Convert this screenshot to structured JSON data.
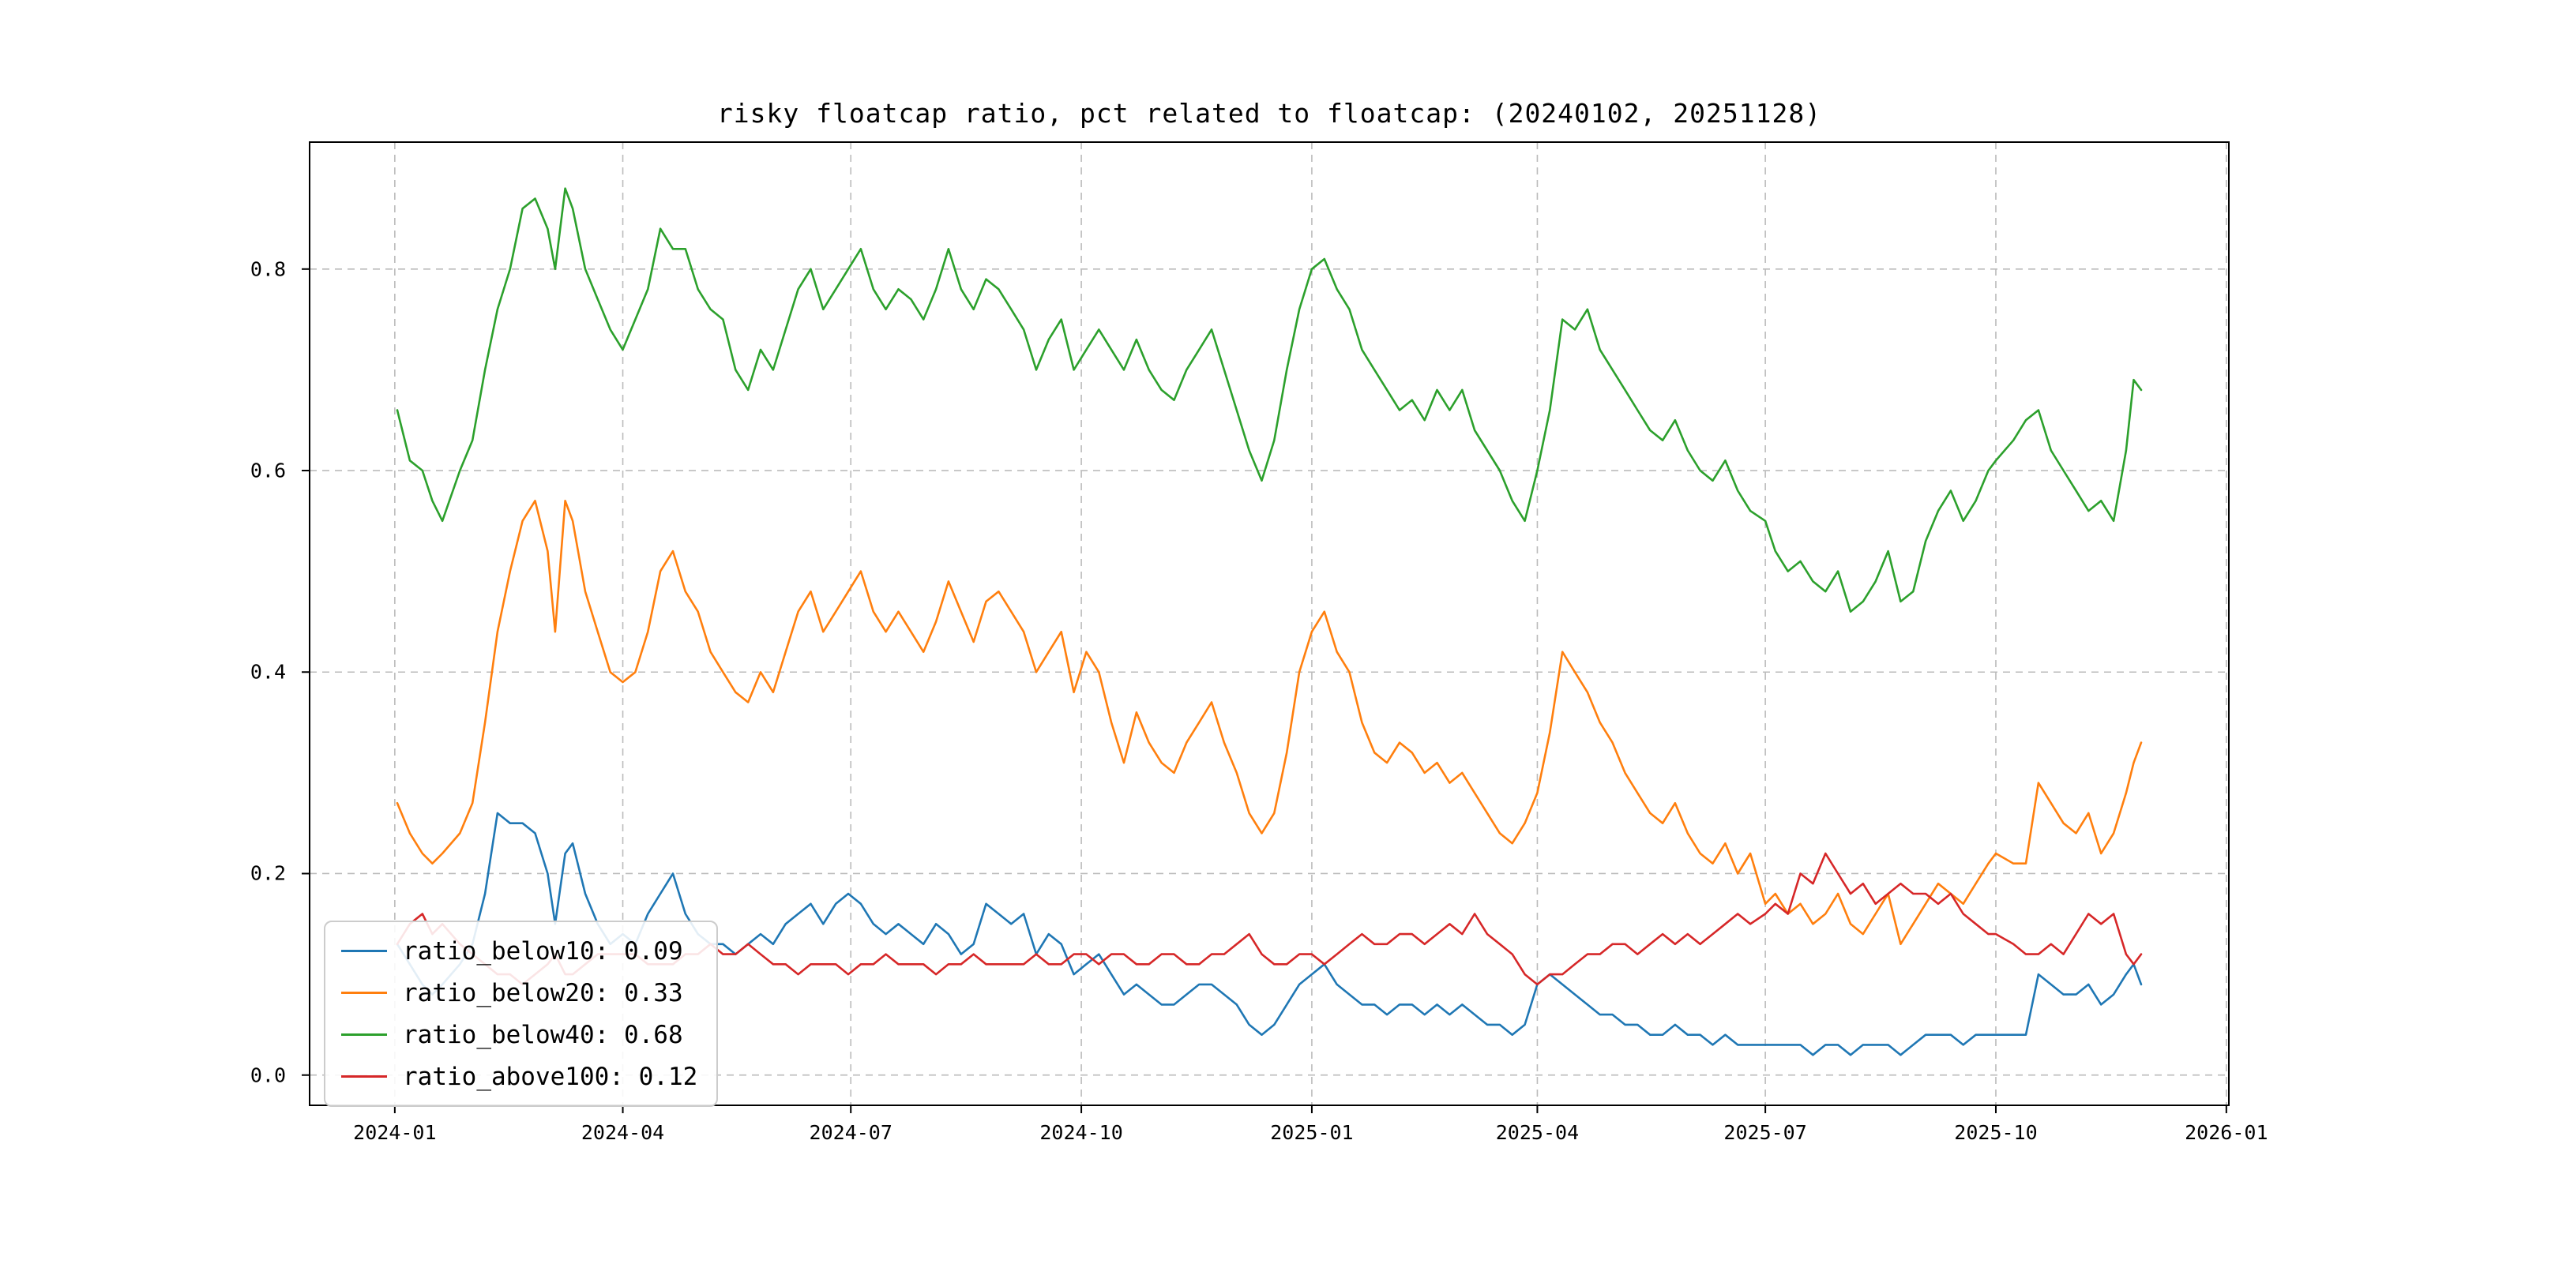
{
  "figure": {
    "background": "#ffffff"
  },
  "style": {
    "grid_color": "#bbbbbb",
    "axis_color": "#000000",
    "legend_border_color": "#cccccc"
  },
  "chart_data": {
    "type": "line",
    "title": "risky floatcap ratio, pct related to floatcap: (20240102, 20251128)",
    "xlabel": "",
    "ylabel": "",
    "x_unit": "days since 2024-01-02",
    "x_start_date": "2024-01-02",
    "x_end_date": "2025-11-28",
    "xlim_days": [
      -35,
      731
    ],
    "ylim": [
      -0.03,
      0.926
    ],
    "grid": true,
    "grid_style": "dashed",
    "legend_position": "lower-left",
    "x_ticks": [
      {
        "label": "2024-01",
        "day": -1
      },
      {
        "label": "2024-04",
        "day": 90
      },
      {
        "label": "2024-07",
        "day": 181
      },
      {
        "label": "2024-10",
        "day": 273
      },
      {
        "label": "2025-01",
        "day": 365
      },
      {
        "label": "2025-04",
        "day": 455
      },
      {
        "label": "2025-07",
        "day": 546
      },
      {
        "label": "2025-10",
        "day": 638
      },
      {
        "label": "2026-01",
        "day": 730
      }
    ],
    "y_ticks": [
      {
        "label": "0.0",
        "value": 0.0
      },
      {
        "label": "0.2",
        "value": 0.2
      },
      {
        "label": "0.4",
        "value": 0.4
      },
      {
        "label": "0.6",
        "value": 0.6
      },
      {
        "label": "0.8",
        "value": 0.8
      }
    ],
    "x_days": [
      0,
      5,
      10,
      14,
      18,
      25,
      30,
      35,
      40,
      45,
      50,
      55,
      60,
      63,
      67,
      70,
      75,
      80,
      85,
      90,
      95,
      100,
      105,
      110,
      115,
      120,
      125,
      130,
      135,
      140,
      145,
      150,
      155,
      160,
      165,
      170,
      175,
      180,
      185,
      190,
      195,
      200,
      205,
      210,
      215,
      220,
      225,
      230,
      235,
      240,
      245,
      250,
      255,
      260,
      265,
      270,
      275,
      280,
      285,
      290,
      295,
      300,
      305,
      310,
      315,
      320,
      325,
      330,
      335,
      340,
      345,
      350,
      355,
      360,
      365,
      370,
      375,
      380,
      385,
      390,
      395,
      400,
      405,
      410,
      415,
      420,
      425,
      430,
      435,
      440,
      445,
      450,
      455,
      460,
      465,
      470,
      475,
      480,
      485,
      490,
      495,
      500,
      505,
      510,
      515,
      520,
      525,
      530,
      535,
      540,
      546,
      550,
      555,
      560,
      565,
      570,
      575,
      580,
      585,
      590,
      595,
      600,
      605,
      610,
      615,
      620,
      625,
      630,
      635,
      638,
      645,
      650,
      655,
      660,
      665,
      670,
      675,
      680,
      685,
      690,
      693,
      696
    ],
    "series": [
      {
        "name": "ratio_below10",
        "color": "#1f77b4",
        "last_value": 0.09,
        "legend_label": "ratio_below10: 0.09",
        "values": [
          0.13,
          0.11,
          0.09,
          0.08,
          0.09,
          0.11,
          0.13,
          0.18,
          0.26,
          0.25,
          0.25,
          0.24,
          0.2,
          0.15,
          0.22,
          0.23,
          0.18,
          0.15,
          0.13,
          0.14,
          0.13,
          0.16,
          0.18,
          0.2,
          0.16,
          0.14,
          0.13,
          0.13,
          0.12,
          0.13,
          0.14,
          0.13,
          0.15,
          0.16,
          0.17,
          0.15,
          0.17,
          0.18,
          0.17,
          0.15,
          0.14,
          0.15,
          0.14,
          0.13,
          0.15,
          0.14,
          0.12,
          0.13,
          0.17,
          0.16,
          0.15,
          0.16,
          0.12,
          0.14,
          0.13,
          0.1,
          0.11,
          0.12,
          0.1,
          0.08,
          0.09,
          0.08,
          0.07,
          0.07,
          0.08,
          0.09,
          0.09,
          0.08,
          0.07,
          0.05,
          0.04,
          0.05,
          0.07,
          0.09,
          0.1,
          0.11,
          0.09,
          0.08,
          0.07,
          0.07,
          0.06,
          0.07,
          0.07,
          0.06,
          0.07,
          0.06,
          0.07,
          0.06,
          0.05,
          0.05,
          0.04,
          0.05,
          0.09,
          0.1,
          0.09,
          0.08,
          0.07,
          0.06,
          0.06,
          0.05,
          0.05,
          0.04,
          0.04,
          0.05,
          0.04,
          0.04,
          0.03,
          0.04,
          0.03,
          0.03,
          0.03,
          0.03,
          0.03,
          0.03,
          0.02,
          0.03,
          0.03,
          0.02,
          0.03,
          0.03,
          0.03,
          0.02,
          0.03,
          0.04,
          0.04,
          0.04,
          0.03,
          0.04,
          0.04,
          0.04,
          0.04,
          0.04,
          0.1,
          0.09,
          0.08,
          0.08,
          0.09,
          0.07,
          0.08,
          0.1,
          0.11,
          0.09
        ]
      },
      {
        "name": "ratio_below20",
        "color": "#ff7f0e",
        "last_value": 0.33,
        "legend_label": "ratio_below20: 0.33",
        "values": [
          0.27,
          0.24,
          0.22,
          0.21,
          0.22,
          0.24,
          0.27,
          0.35,
          0.44,
          0.5,
          0.55,
          0.57,
          0.52,
          0.44,
          0.57,
          0.55,
          0.48,
          0.44,
          0.4,
          0.39,
          0.4,
          0.44,
          0.5,
          0.52,
          0.48,
          0.46,
          0.42,
          0.4,
          0.38,
          0.37,
          0.4,
          0.38,
          0.42,
          0.46,
          0.48,
          0.44,
          0.46,
          0.48,
          0.5,
          0.46,
          0.44,
          0.46,
          0.44,
          0.42,
          0.45,
          0.49,
          0.46,
          0.43,
          0.47,
          0.48,
          0.46,
          0.44,
          0.4,
          0.42,
          0.44,
          0.38,
          0.42,
          0.4,
          0.35,
          0.31,
          0.36,
          0.33,
          0.31,
          0.3,
          0.33,
          0.35,
          0.37,
          0.33,
          0.3,
          0.26,
          0.24,
          0.26,
          0.32,
          0.4,
          0.44,
          0.46,
          0.42,
          0.4,
          0.35,
          0.32,
          0.31,
          0.33,
          0.32,
          0.3,
          0.31,
          0.29,
          0.3,
          0.28,
          0.26,
          0.24,
          0.23,
          0.25,
          0.28,
          0.34,
          0.42,
          0.4,
          0.38,
          0.35,
          0.33,
          0.3,
          0.28,
          0.26,
          0.25,
          0.27,
          0.24,
          0.22,
          0.21,
          0.23,
          0.2,
          0.22,
          0.17,
          0.18,
          0.16,
          0.17,
          0.15,
          0.16,
          0.18,
          0.15,
          0.14,
          0.16,
          0.18,
          0.13,
          0.15,
          0.17,
          0.19,
          0.18,
          0.17,
          0.19,
          0.21,
          0.22,
          0.21,
          0.21,
          0.29,
          0.27,
          0.25,
          0.24,
          0.26,
          0.22,
          0.24,
          0.28,
          0.31,
          0.33
        ]
      },
      {
        "name": "ratio_below40",
        "color": "#2ca02c",
        "last_value": 0.68,
        "legend_label": "ratio_below40: 0.68",
        "values": [
          0.66,
          0.61,
          0.6,
          0.57,
          0.55,
          0.6,
          0.63,
          0.7,
          0.76,
          0.8,
          0.86,
          0.87,
          0.84,
          0.8,
          0.88,
          0.86,
          0.8,
          0.77,
          0.74,
          0.72,
          0.75,
          0.78,
          0.84,
          0.82,
          0.82,
          0.78,
          0.76,
          0.75,
          0.7,
          0.68,
          0.72,
          0.7,
          0.74,
          0.78,
          0.8,
          0.76,
          0.78,
          0.8,
          0.82,
          0.78,
          0.76,
          0.78,
          0.77,
          0.75,
          0.78,
          0.82,
          0.78,
          0.76,
          0.79,
          0.78,
          0.76,
          0.74,
          0.7,
          0.73,
          0.75,
          0.7,
          0.72,
          0.74,
          0.72,
          0.7,
          0.73,
          0.7,
          0.68,
          0.67,
          0.7,
          0.72,
          0.74,
          0.7,
          0.66,
          0.62,
          0.59,
          0.63,
          0.7,
          0.76,
          0.8,
          0.81,
          0.78,
          0.76,
          0.72,
          0.7,
          0.68,
          0.66,
          0.67,
          0.65,
          0.68,
          0.66,
          0.68,
          0.64,
          0.62,
          0.6,
          0.57,
          0.55,
          0.6,
          0.66,
          0.75,
          0.74,
          0.76,
          0.72,
          0.7,
          0.68,
          0.66,
          0.64,
          0.63,
          0.65,
          0.62,
          0.6,
          0.59,
          0.61,
          0.58,
          0.56,
          0.55,
          0.52,
          0.5,
          0.51,
          0.49,
          0.48,
          0.5,
          0.46,
          0.47,
          0.49,
          0.52,
          0.47,
          0.48,
          0.53,
          0.56,
          0.58,
          0.55,
          0.57,
          0.6,
          0.61,
          0.63,
          0.65,
          0.66,
          0.62,
          0.6,
          0.58,
          0.56,
          0.57,
          0.55,
          0.62,
          0.69,
          0.68
        ]
      },
      {
        "name": "ratio_above100",
        "color": "#d62728",
        "last_value": 0.12,
        "legend_label": "ratio_above100: 0.12",
        "values": [
          0.13,
          0.15,
          0.16,
          0.14,
          0.15,
          0.13,
          0.12,
          0.11,
          0.1,
          0.1,
          0.09,
          0.1,
          0.11,
          0.12,
          0.1,
          0.1,
          0.11,
          0.12,
          0.12,
          0.12,
          0.12,
          0.11,
          0.11,
          0.11,
          0.12,
          0.12,
          0.13,
          0.12,
          0.12,
          0.13,
          0.12,
          0.11,
          0.11,
          0.1,
          0.11,
          0.11,
          0.11,
          0.1,
          0.11,
          0.11,
          0.12,
          0.11,
          0.11,
          0.11,
          0.1,
          0.11,
          0.11,
          0.12,
          0.11,
          0.11,
          0.11,
          0.11,
          0.12,
          0.11,
          0.11,
          0.12,
          0.12,
          0.11,
          0.12,
          0.12,
          0.11,
          0.11,
          0.12,
          0.12,
          0.11,
          0.11,
          0.12,
          0.12,
          0.13,
          0.14,
          0.12,
          0.11,
          0.11,
          0.12,
          0.12,
          0.11,
          0.12,
          0.13,
          0.14,
          0.13,
          0.13,
          0.14,
          0.14,
          0.13,
          0.14,
          0.15,
          0.14,
          0.16,
          0.14,
          0.13,
          0.12,
          0.1,
          0.09,
          0.1,
          0.1,
          0.11,
          0.12,
          0.12,
          0.13,
          0.13,
          0.12,
          0.13,
          0.14,
          0.13,
          0.14,
          0.13,
          0.14,
          0.15,
          0.16,
          0.15,
          0.16,
          0.17,
          0.16,
          0.2,
          0.19,
          0.22,
          0.2,
          0.18,
          0.19,
          0.17,
          0.18,
          0.19,
          0.18,
          0.18,
          0.17,
          0.18,
          0.16,
          0.15,
          0.14,
          0.14,
          0.13,
          0.12,
          0.12,
          0.13,
          0.12,
          0.14,
          0.16,
          0.15,
          0.16,
          0.12,
          0.11,
          0.12
        ]
      }
    ]
  }
}
